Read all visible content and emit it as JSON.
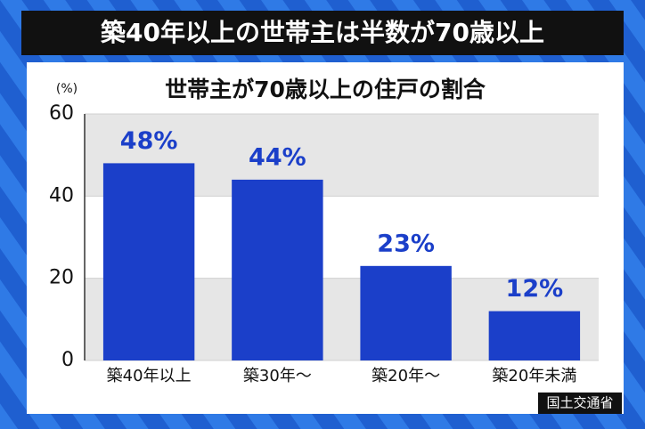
{
  "chart_data": {
    "type": "bar",
    "headline": "築40年以上の世帯主は半数が70歳以上",
    "title": "世帯主が70歳以上の住戸の割合",
    "y_unit": "(%)",
    "source": "国土交通省",
    "categories": [
      "築40年以上",
      "築30年〜",
      "築20年〜",
      "築20年未満"
    ],
    "values": [
      48,
      44,
      23,
      12
    ],
    "value_labels": [
      "48%",
      "44%",
      "23%",
      "12%"
    ],
    "color": "#1b3fc9",
    "ylim": [
      0,
      60
    ],
    "yticks": [
      0,
      20,
      40,
      60
    ],
    "grid": true
  }
}
